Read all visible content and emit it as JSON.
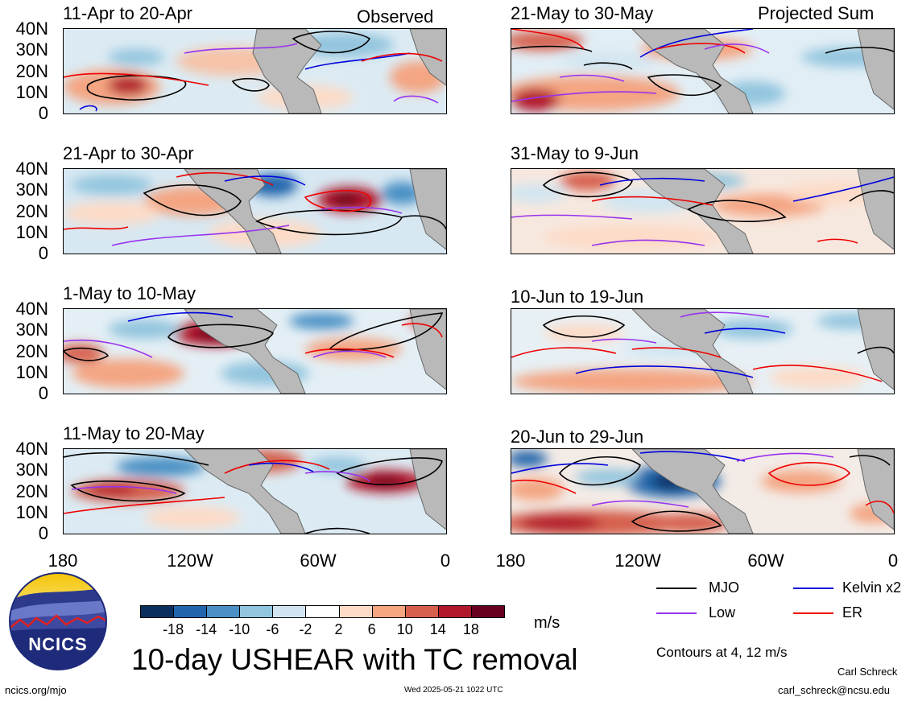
{
  "header": {
    "observed_label": "Observed",
    "projected_label": "Projected Sum"
  },
  "panels": [
    {
      "title": "11-Apr to 20-Apr"
    },
    {
      "title": "21-Apr to 30-Apr"
    },
    {
      "title": "1-May to 10-May"
    },
    {
      "title": "11-May to 20-May"
    },
    {
      "title": "21-May to 30-May"
    },
    {
      "title": "31-May to 9-Jun"
    },
    {
      "title": "10-Jun to 19-Jun"
    },
    {
      "title": "20-Jun to 29-Jun"
    }
  ],
  "axes": {
    "lat_labels": [
      "40N",
      "30N",
      "20N",
      "10N",
      "0"
    ],
    "lon_labels": [
      "180",
      "120W",
      "60W",
      "0"
    ]
  },
  "colorbar": {
    "labels": [
      "-18",
      "-14",
      "-10",
      "-6",
      "-2",
      "2",
      "6",
      "10",
      "14",
      "18"
    ],
    "colors": [
      "#0b2f5e",
      "#2166ac",
      "#4a90c4",
      "#92c5de",
      "#d1e5f0",
      "#ffffff",
      "#fddbc7",
      "#f4a582",
      "#d6604d",
      "#b2182b",
      "#67001f"
    ],
    "unit": "m/s"
  },
  "legend": {
    "items": [
      {
        "name": "MJO",
        "color": "#000000"
      },
      {
        "name": "Kelvin x2",
        "color": "#0000dd"
      },
      {
        "name": "Low",
        "color": "#9933ee"
      },
      {
        "name": "ER",
        "color": "#ee0000"
      }
    ],
    "contours_note": "Contours at 4, 12 m/s"
  },
  "title": "10-day USHEAR with TC removal",
  "logo": {
    "text": "NCICS"
  },
  "footer": {
    "site": "ncics.org/mjo",
    "timestamp": "Wed 2025-05-21 1022 UTC",
    "author": "Carl Schreck",
    "email": "carl_schreck@ncsu.edu"
  }
}
